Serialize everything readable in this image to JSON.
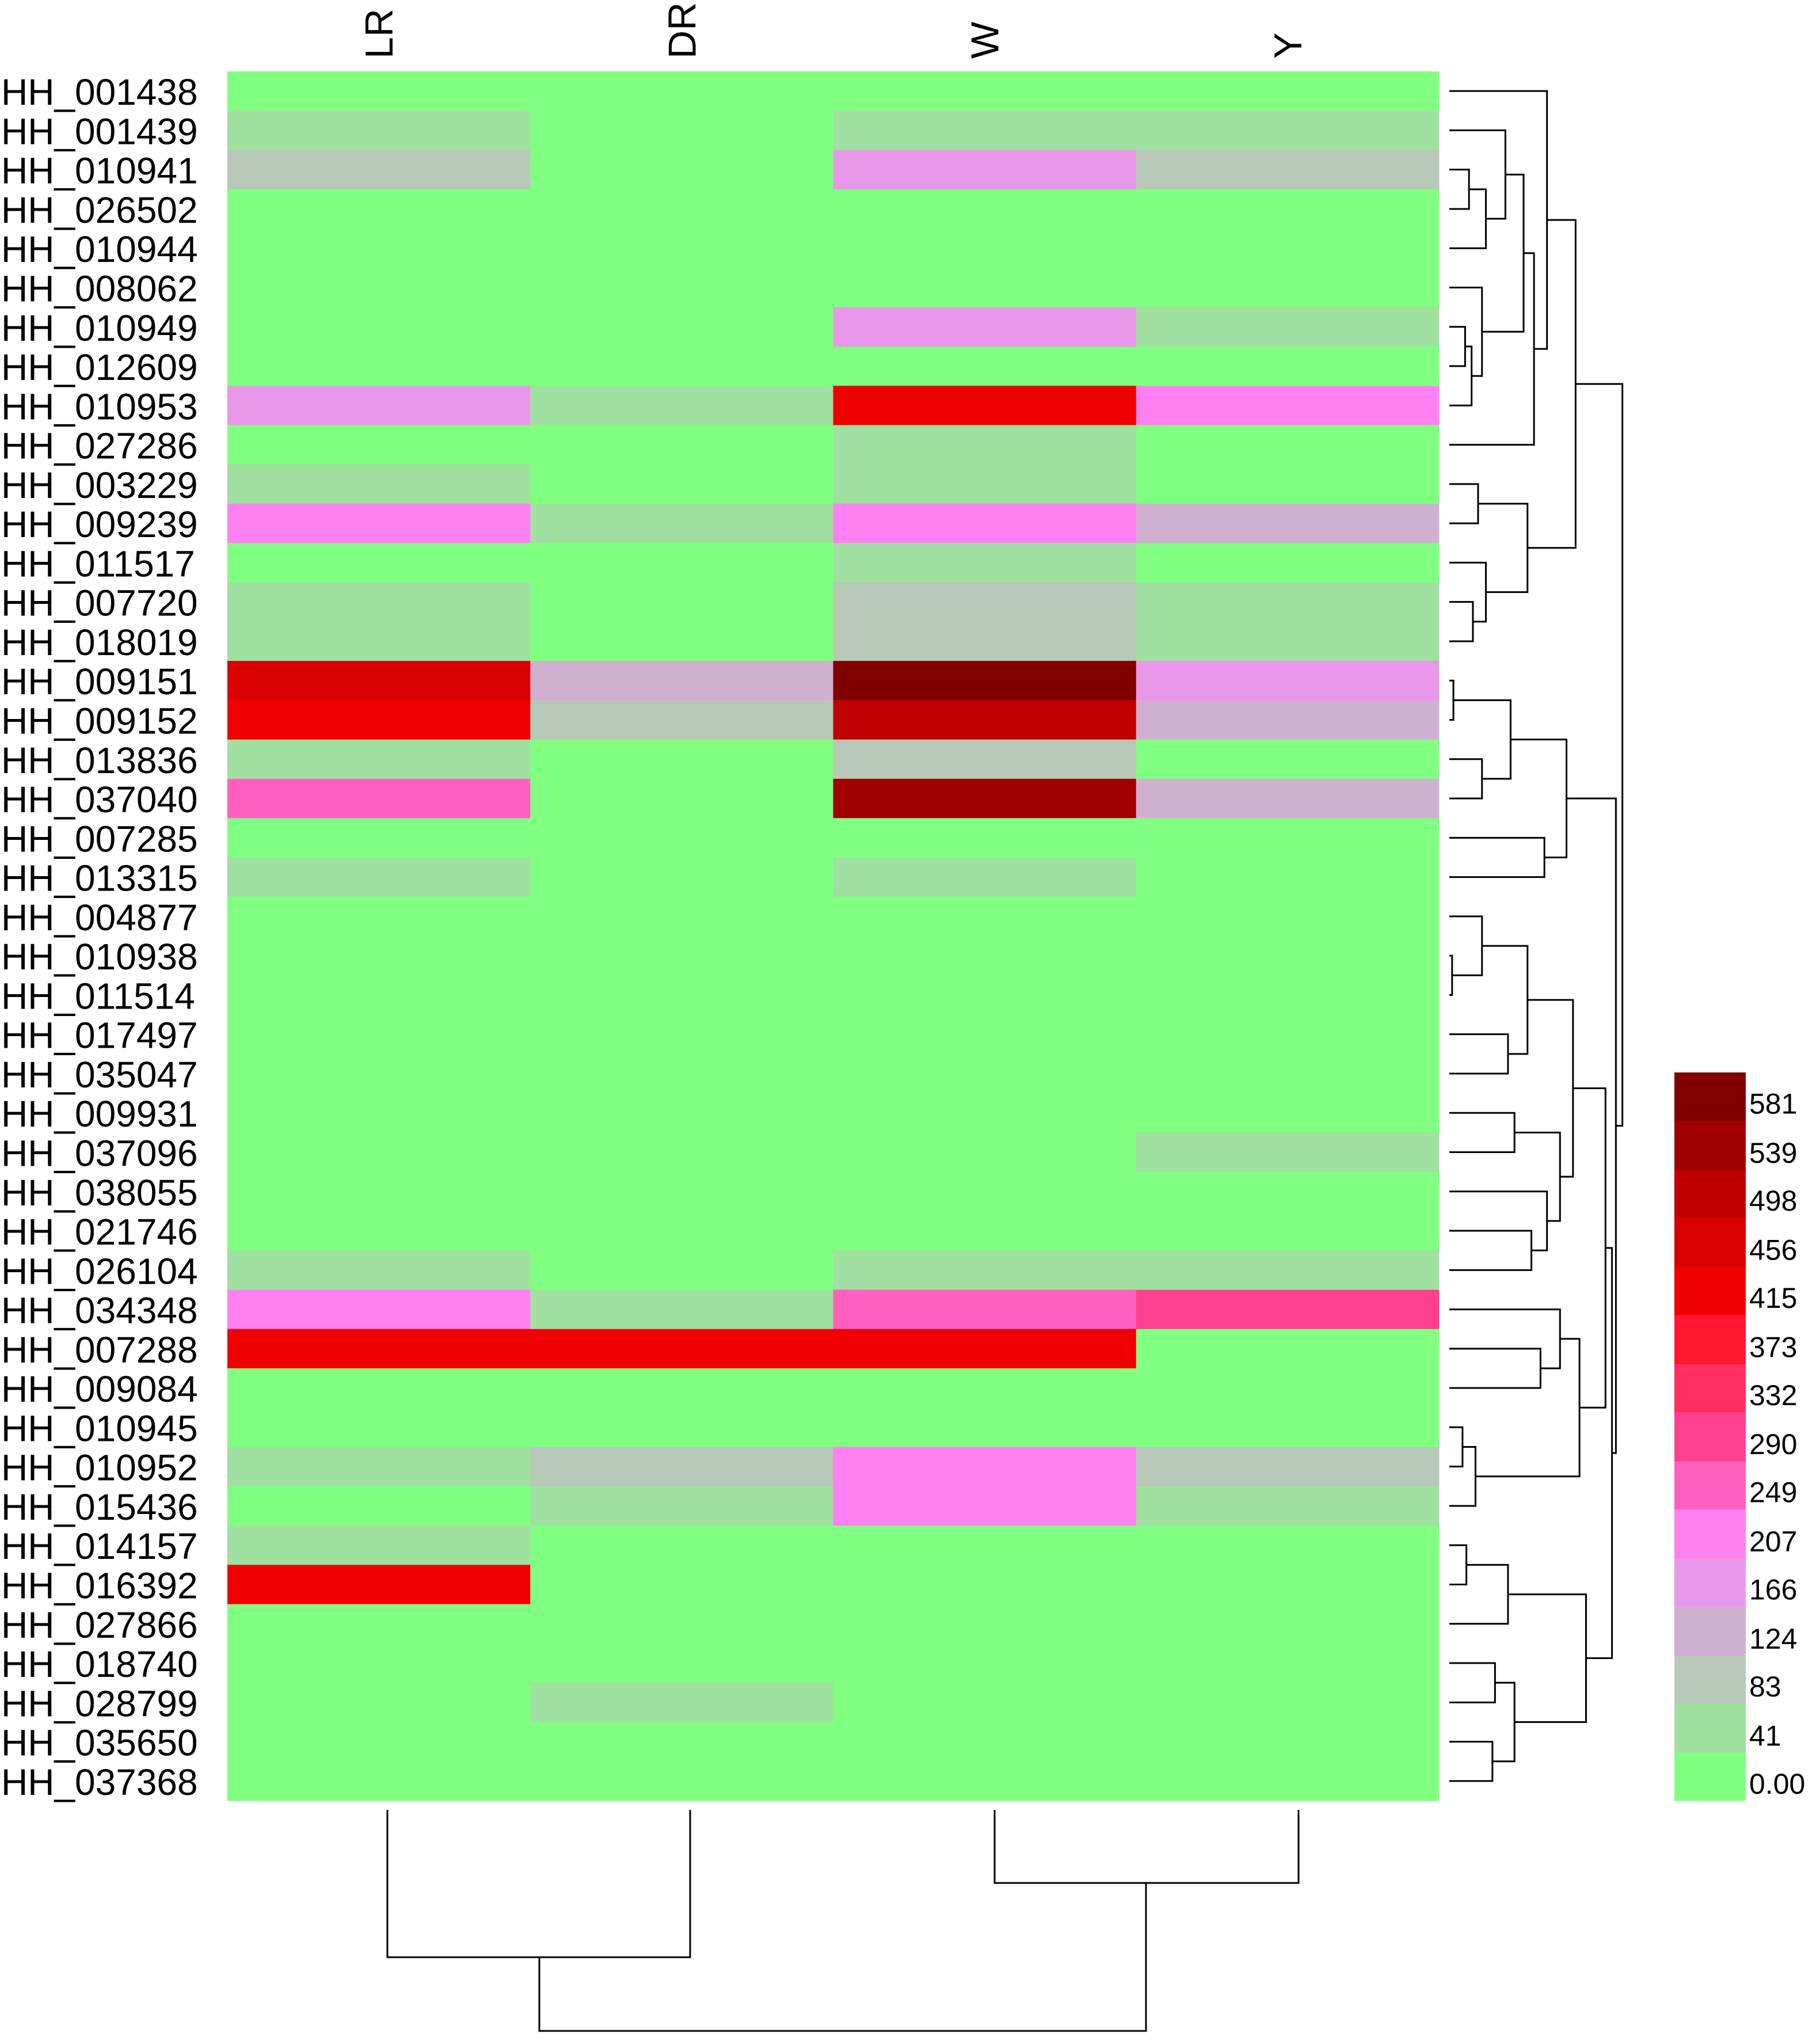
{
  "chart_data": {
    "type": "heatmap",
    "rows": [
      "HH_001438",
      "HH_001439",
      "HH_010941",
      "HH_026502",
      "HH_010944",
      "HH_008062",
      "HH_010949",
      "HH_012609",
      "HH_010953",
      "HH_027286",
      "HH_003229",
      "HH_009239",
      "HH_011517",
      "HH_007720",
      "HH_018019",
      "HH_009151",
      "HH_009152",
      "HH_013836",
      "HH_037040",
      "HH_007285",
      "HH_013315",
      "HH_004877",
      "HH_010938",
      "HH_011514",
      "HH_017497",
      "HH_035047",
      "HH_009931",
      "HH_037096",
      "HH_038055",
      "HH_021746",
      "HH_026104",
      "HH_034348",
      "HH_007288",
      "HH_009084",
      "HH_010945",
      "HH_010952",
      "HH_015436",
      "HH_014157",
      "HH_016392",
      "HH_027866",
      "HH_018740",
      "HH_028799",
      "HH_035650",
      "HH_037368"
    ],
    "columns": [
      "LR",
      "DR",
      "W",
      "Y"
    ],
    "values": [
      [
        10,
        10,
        10,
        10
      ],
      [
        60,
        10,
        60,
        60
      ],
      [
        100,
        10,
        180,
        100
      ],
      [
        10,
        10,
        10,
        10
      ],
      [
        10,
        10,
        10,
        10
      ],
      [
        10,
        10,
        10,
        10
      ],
      [
        10,
        10,
        180,
        60
      ],
      [
        10,
        10,
        10,
        10
      ],
      [
        180,
        60,
        430,
        220
      ],
      [
        10,
        10,
        60,
        10
      ],
      [
        60,
        10,
        60,
        10
      ],
      [
        220,
        60,
        220,
        140
      ],
      [
        10,
        10,
        60,
        10
      ],
      [
        60,
        10,
        100,
        60
      ],
      [
        60,
        10,
        100,
        60
      ],
      [
        470,
        140,
        600,
        180
      ],
      [
        430,
        100,
        510,
        140
      ],
      [
        60,
        10,
        100,
        10
      ],
      [
        260,
        10,
        550,
        140
      ],
      [
        10,
        10,
        10,
        10
      ],
      [
        60,
        10,
        60,
        10
      ],
      [
        10,
        10,
        10,
        10
      ],
      [
        10,
        10,
        10,
        10
      ],
      [
        10,
        10,
        10,
        10
      ],
      [
        10,
        10,
        10,
        10
      ],
      [
        10,
        10,
        10,
        10
      ],
      [
        10,
        10,
        10,
        10
      ],
      [
        10,
        10,
        10,
        60
      ],
      [
        10,
        10,
        10,
        10
      ],
      [
        10,
        10,
        10,
        10
      ],
      [
        60,
        10,
        60,
        60
      ],
      [
        220,
        60,
        260,
        300
      ],
      [
        430,
        430,
        430,
        10
      ],
      [
        10,
        10,
        10,
        10
      ],
      [
        10,
        10,
        10,
        10
      ],
      [
        60,
        100,
        220,
        100
      ],
      [
        10,
        60,
        220,
        60
      ],
      [
        60,
        10,
        10,
        10
      ],
      [
        430,
        10,
        10,
        10
      ],
      [
        10,
        10,
        10,
        10
      ],
      [
        10,
        10,
        10,
        10
      ],
      [
        10,
        60,
        10,
        10
      ],
      [
        10,
        10,
        10,
        10
      ],
      [
        10,
        10,
        10,
        10
      ]
    ],
    "clim": [
      0,
      622
    ],
    "cticks": [
      {
        "value": 0,
        "label": "0.00"
      },
      41,
      83,
      124,
      166,
      207,
      249,
      290,
      332,
      373,
      415,
      456,
      498,
      539,
      581
    ],
    "colors": [
      "#80ff80",
      "#a0e0a0",
      "#b8c8b8",
      "#d0b0d0",
      "#e898e8",
      "#ff80f0",
      "#ff60c0",
      "#ff4090",
      "#ff3060",
      "#ff1830",
      "#f00000",
      "#d80000",
      "#c00000",
      "#a00000",
      "#800000"
    ]
  }
}
